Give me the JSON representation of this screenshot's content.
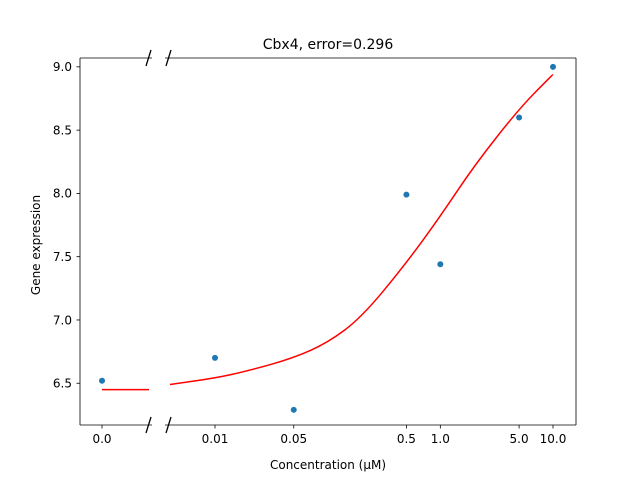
{
  "chart_data": {
    "type": "scatter",
    "title": "Cbx4, error=0.296",
    "xlabel": "Concentration (μM)",
    "ylabel": "Gene expression",
    "x_scale": "log with broken axis at zero",
    "x_ticks": [
      "0.0",
      "0.01",
      "0.05",
      "0.5",
      "1.0",
      "5.0",
      "10.0"
    ],
    "x_tick_values": [
      0,
      0.01,
      0.05,
      0.5,
      1.0,
      5.0,
      10.0
    ],
    "y_ticks": [
      "6.5",
      "7.0",
      "7.5",
      "8.0",
      "8.5",
      "9.0"
    ],
    "y_tick_values": [
      6.5,
      7.0,
      7.5,
      8.0,
      8.5,
      9.0
    ],
    "ylim": [
      6.17,
      9.07
    ],
    "grid": false,
    "series": [
      {
        "kind": "points",
        "color": "#1f77b4",
        "x": [
          0,
          0.01,
          0.05,
          0.5,
          1.0,
          5.0,
          10.0
        ],
        "y": [
          6.52,
          6.7,
          6.29,
          7.99,
          7.44,
          8.6,
          9.0
        ]
      },
      {
        "kind": "fit-curve",
        "color": "#ff0000",
        "x": [
          0,
          0.005,
          0.01,
          0.02,
          0.05,
          0.1,
          0.2,
          0.5,
          1.0,
          2.0,
          5.0,
          10.0
        ],
        "y": [
          6.45,
          6.49,
          6.54,
          6.6,
          6.7,
          6.82,
          7.02,
          7.45,
          7.82,
          8.22,
          8.67,
          8.94
        ]
      }
    ]
  }
}
